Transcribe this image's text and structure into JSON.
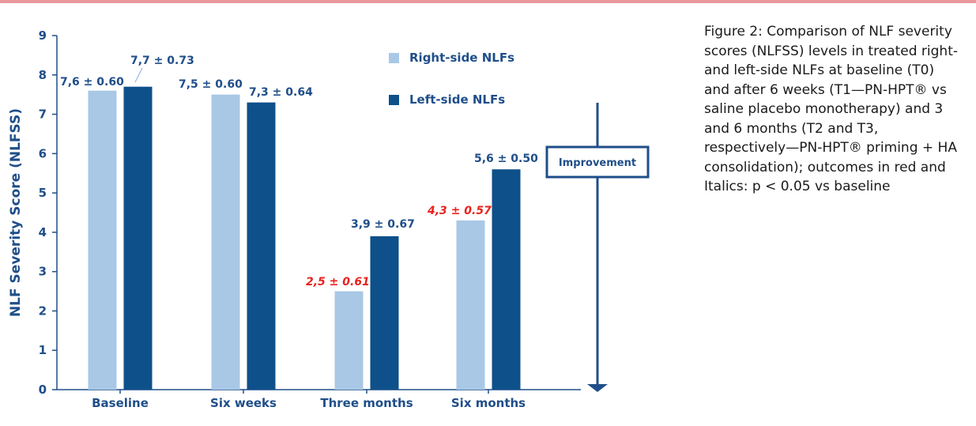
{
  "chart_data": {
    "type": "bar",
    "categories": [
      "Baseline",
      "Six weeks",
      "Three months",
      "Six months"
    ],
    "series": [
      {
        "name": "Right-side NLFs",
        "color": "#a8c8e6",
        "values": [
          7.6,
          7.5,
          2.5,
          4.3
        ],
        "labels": [
          "7,6 ± 0.60",
          "7,5 ± 0.60",
          "2,5 ± 0.61",
          "4,3 ± 0.57"
        ],
        "significant": [
          false,
          false,
          true,
          true
        ]
      },
      {
        "name": "Left-side NLFs",
        "color": "#0e508a",
        "values": [
          7.7,
          7.3,
          3.9,
          5.6
        ],
        "labels": [
          "7,7 ± 0.73",
          "7,3 ± 0.64",
          "3,9 ± 0.67",
          "5,6 ± 0.50"
        ],
        "significant": [
          false,
          false,
          false,
          false
        ]
      }
    ],
    "ylabel": "NLF Severity Score (NLFSS)",
    "xlabel": "",
    "ylim": [
      0,
      9
    ],
    "yticks": [
      0,
      1,
      2,
      3,
      4,
      5,
      6,
      7,
      8,
      9
    ],
    "legend_position": "top-right",
    "grid": false,
    "significance_color": "#e8221e",
    "annotation": {
      "text": "Improvement",
      "color": "#1f4e89"
    }
  },
  "caption": "Figure 2: Comparison of NLF severity scores (NLFSS) levels in treated right- and left-side NLFs at baseline (T0) and after 6 weeks (T1—PN-HPT® vs saline placebo monotherapy) and 3 and 6 months (T2 and T3, respectively—PN-HPT® priming + HA consolidation); outcomes in red and Italics: p < 0.05 vs baseline"
}
